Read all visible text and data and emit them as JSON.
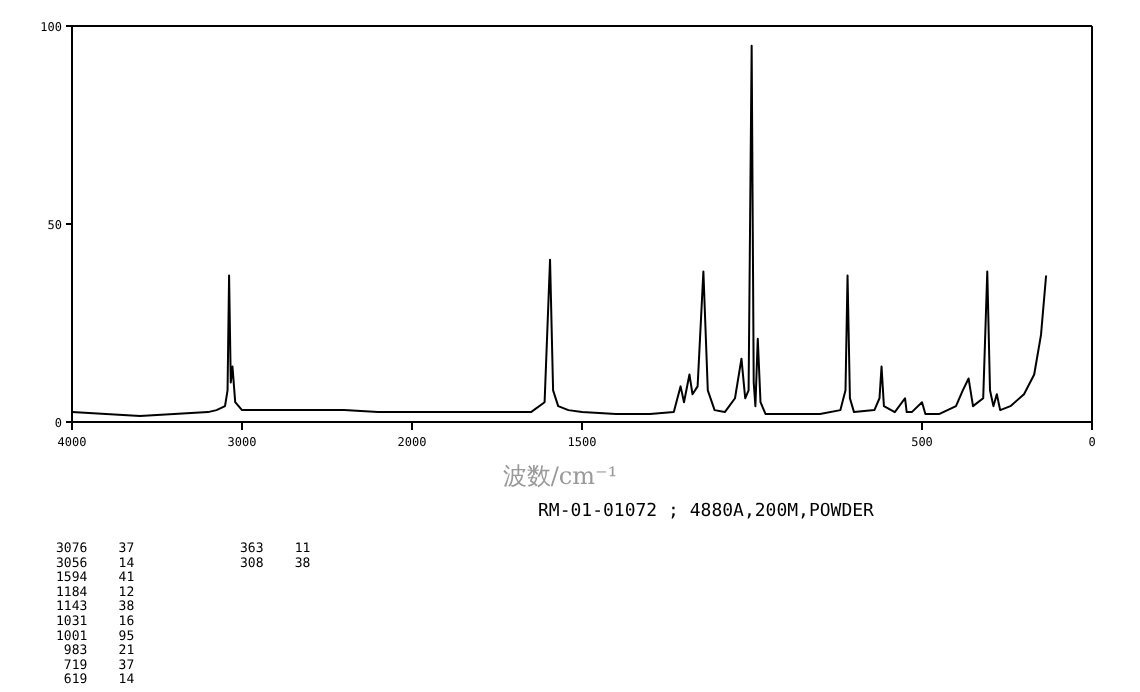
{
  "chart_data": [
    {
      "type": "line",
      "xlabel": "波数/cm⁻¹",
      "annotations": [
        "RM-01-01072 ; 4880A,200M,POWDER",
        "3076    37",
        "3056    14",
        "1594    41",
        "1184    12",
        "1143    38",
        "1031    16",
        "1001    95",
        " 983    21",
        " 719    37",
        " 619    14",
        "363    11",
        "308    38"
      ],
      "xlim": [
        4000,
        2000
      ],
      "xticks": [
        4000,
        3000,
        2000
      ],
      "ylim": [
        0,
        100
      ],
      "yticks": [
        0,
        50,
        100
      ],
      "series": [
        {
          "color": "#000000",
          "x": [
            4000,
            3800,
            3600,
            3400,
            3200,
            3150,
            3100,
            3085,
            3076,
            3066,
            3056,
            3040,
            3000,
            2800,
            2600,
            2400,
            2200,
            2000
          ],
          "values": [
            2.5,
            2,
            1.5,
            2,
            2.5,
            3,
            4,
            8,
            37,
            10,
            14,
            5,
            3,
            3,
            3,
            3,
            2.5,
            2.5
          ]
        }
      ]
    },
    {
      "type": "line",
      "xlim": [
        2000,
        0
      ],
      "xticks": [
        1500,
        500,
        0
      ],
      "ylim": [
        0,
        100
      ],
      "tick_labels": "x",
      "series": [
        {
          "color": "#000000",
          "x": [
            2000,
            1800,
            1650,
            1610,
            1594,
            1585,
            1570,
            1540,
            1500,
            1400,
            1300,
            1230,
            1210,
            1200,
            1184,
            1175,
            1160,
            1143,
            1130,
            1110,
            1080,
            1050,
            1031,
            1020,
            1010,
            1001,
            995,
            990,
            983,
            975,
            960,
            900,
            800,
            740,
            725,
            719,
            712,
            700,
            640,
            625,
            619,
            612,
            580,
            550,
            545,
            530,
            500,
            490,
            450,
            400,
            380,
            363,
            350,
            320,
            308,
            300,
            290,
            280,
            270,
            240,
            200,
            170,
            150,
            135
          ],
          "values": [
            2.5,
            2.5,
            2.5,
            5,
            41,
            8,
            4,
            3,
            2.5,
            2,
            2,
            2.5,
            9,
            5,
            12,
            7,
            9,
            38,
            8,
            3,
            2.5,
            6,
            16,
            6,
            8,
            95,
            10,
            4,
            21,
            5,
            2,
            2,
            2,
            3,
            8,
            37,
            6,
            2.5,
            3,
            6,
            14,
            4,
            2.5,
            6,
            2.5,
            2.5,
            5,
            2,
            2,
            4,
            8,
            11,
            4,
            6,
            38,
            8,
            4,
            7,
            3,
            4,
            7,
            12,
            22,
            37
          ]
        }
      ]
    }
  ]
}
